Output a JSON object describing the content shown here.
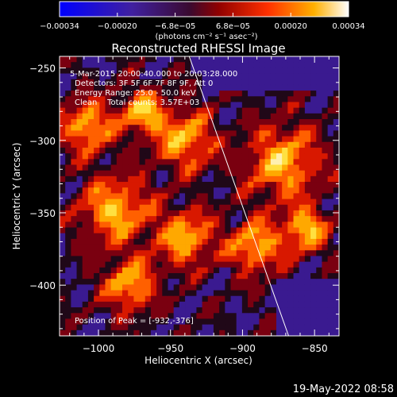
{
  "colorbar": {
    "tick_labels": [
      "−0.00034",
      "−0.00020",
      "−6.8e−05",
      "6.8e−05",
      "0.00020",
      "0.00034"
    ],
    "units_text": "(photons cm⁻² s⁻¹ asec⁻²)",
    "vmin": -0.00034,
    "vmax": 0.00034
  },
  "info": {
    "line1": "5-Mar-2015 20:00:40.000 to 20:03:28.000",
    "line2": "Detectors: 3F 5F 6F 7F 8F 9F, Att 0",
    "line3": "Energy Range: 25.0 - 50.0 keV",
    "line4": "Clean    Total counts: 3.57E+03",
    "peak": "Position of Peak = [-932,-376]"
  },
  "footer": {
    "timestamp": "19-May-2022 08:58"
  },
  "chart_data": {
    "type": "heatmap",
    "title": "Reconstructed RHESSI Image",
    "xlabel": "Heliocentric X (arcsec)",
    "ylabel": "Heliocentric Y (arcsec)",
    "xlim": [
      -1027,
      -833
    ],
    "ylim": [
      -435,
      -242
    ],
    "x_ticks": [
      -1000,
      -950,
      -900,
      -850
    ],
    "y_ticks": [
      -250,
      -300,
      -350,
      -400
    ],
    "x_tick_labels": [
      "−1000",
      "−950",
      "−900",
      "−850"
    ],
    "y_tick_labels": [
      "−250",
      "−300",
      "−350",
      "−400"
    ],
    "colormap": "black-purple-red-orange-yellow-white",
    "limb_line": [
      [
        -937,
        -242
      ],
      [
        -868,
        -435
      ]
    ],
    "peak_position": [
      -932,
      -376
    ],
    "pixel_grid": [
      49,
      49
    ]
  }
}
